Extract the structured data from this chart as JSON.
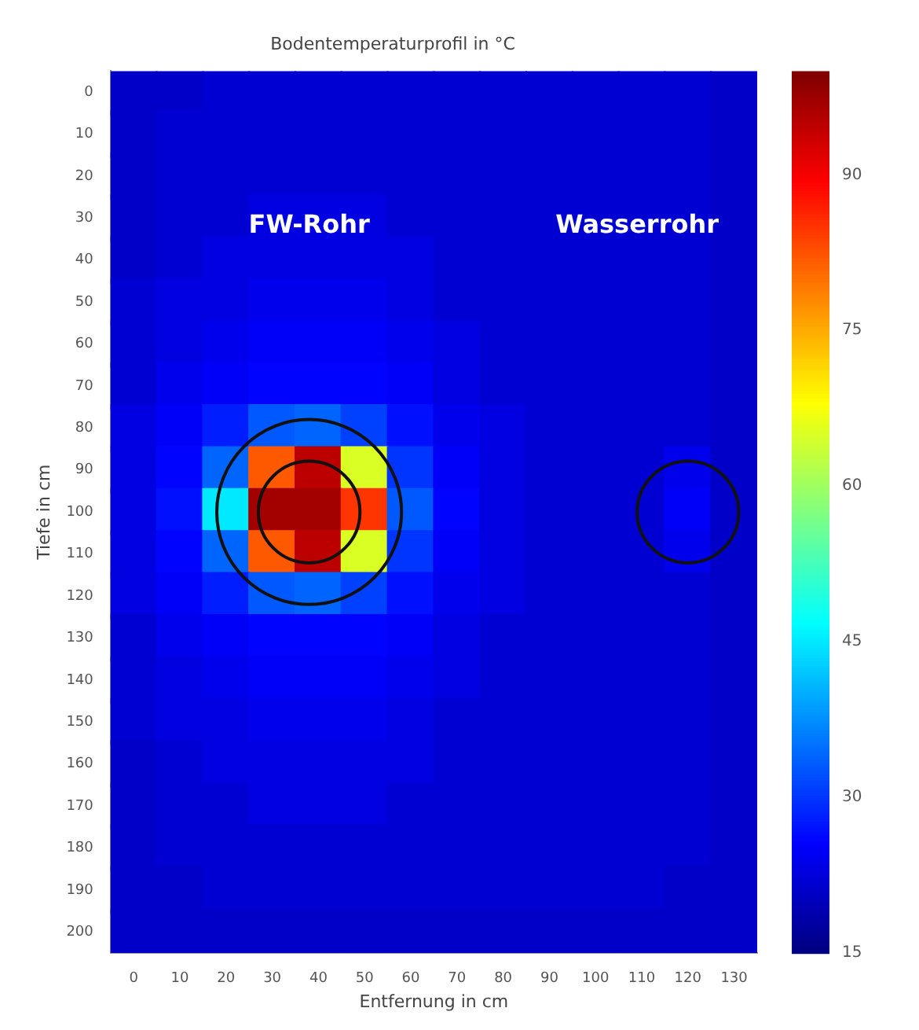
{
  "chart_data": {
    "type": "heatmap",
    "title": "Bodentemperaturprofil in °C",
    "xlabel": "Entfernung in cm",
    "ylabel": "Tiefe in cm",
    "categories": [
      "0",
      "10",
      "20",
      "30",
      "40",
      "50",
      "60",
      "70",
      "80",
      "90",
      "100",
      "110",
      "120",
      "130"
    ],
    "y_categories": [
      "0",
      "10",
      "20",
      "30",
      "40",
      "50",
      "60",
      "70",
      "80",
      "90",
      "100",
      "110",
      "120",
      "130",
      "140",
      "150",
      "160",
      "170",
      "180",
      "190",
      "200"
    ],
    "clim": [
      15,
      100
    ],
    "cticks": [
      15,
      30,
      45,
      60,
      75,
      90
    ],
    "cells": [
      [
        21,
        21,
        22,
        22,
        22,
        22,
        22,
        22,
        22,
        22,
        22,
        22,
        22,
        21
      ],
      [
        21,
        22,
        22,
        22,
        22,
        22,
        22,
        22,
        22,
        22,
        22,
        22,
        22,
        21
      ],
      [
        21,
        22,
        22,
        22,
        22,
        22,
        22,
        22,
        22,
        22,
        22,
        22,
        22,
        21
      ],
      [
        21,
        22,
        22,
        23,
        23,
        23,
        22,
        22,
        22,
        22,
        22,
        22,
        22,
        21
      ],
      [
        21,
        22,
        23,
        23,
        23,
        23,
        23,
        22,
        22,
        22,
        22,
        22,
        22,
        21
      ],
      [
        22,
        23,
        23,
        24,
        24,
        24,
        23,
        22,
        22,
        22,
        22,
        22,
        22,
        21
      ],
      [
        22,
        23,
        24,
        25,
        25,
        25,
        24,
        23,
        22,
        22,
        22,
        22,
        22,
        21
      ],
      [
        22,
        24,
        25,
        26,
        26,
        26,
        25,
        23,
        22,
        22,
        22,
        22,
        22,
        21
      ],
      [
        23,
        25,
        28,
        33,
        34,
        31,
        27,
        24,
        23,
        22,
        22,
        22,
        22,
        21
      ],
      [
        23,
        26,
        34,
        82,
        95,
        65,
        30,
        25,
        23,
        22,
        22,
        22,
        24,
        21
      ],
      [
        23,
        27,
        45,
        97,
        97,
        85,
        33,
        26,
        23,
        22,
        22,
        22,
        25,
        21
      ],
      [
        23,
        26,
        34,
        82,
        95,
        65,
        30,
        25,
        23,
        22,
        22,
        22,
        24,
        21
      ],
      [
        23,
        25,
        28,
        33,
        34,
        31,
        27,
        24,
        23,
        22,
        22,
        22,
        22,
        21
      ],
      [
        22,
        24,
        25,
        26,
        26,
        26,
        25,
        23,
        22,
        22,
        22,
        22,
        22,
        21
      ],
      [
        22,
        23,
        24,
        25,
        25,
        25,
        24,
        23,
        22,
        22,
        22,
        22,
        22,
        21
      ],
      [
        22,
        23,
        23,
        24,
        24,
        24,
        23,
        22,
        22,
        22,
        22,
        22,
        22,
        21
      ],
      [
        21,
        22,
        23,
        23,
        23,
        23,
        23,
        22,
        22,
        22,
        22,
        22,
        22,
        21
      ],
      [
        21,
        22,
        22,
        23,
        23,
        23,
        22,
        22,
        22,
        22,
        22,
        22,
        22,
        21
      ],
      [
        21,
        22,
        22,
        22,
        22,
        22,
        22,
        22,
        22,
        22,
        22,
        22,
        22,
        21
      ],
      [
        21,
        21,
        22,
        22,
        22,
        22,
        22,
        22,
        22,
        22,
        22,
        22,
        21,
        21
      ],
      [
        21,
        21,
        21,
        21,
        21,
        21,
        21,
        21,
        21,
        21,
        21,
        21,
        21,
        21
      ]
    ],
    "annotations": [
      "FW-Rohr",
      "Wasserrohr"
    ]
  }
}
